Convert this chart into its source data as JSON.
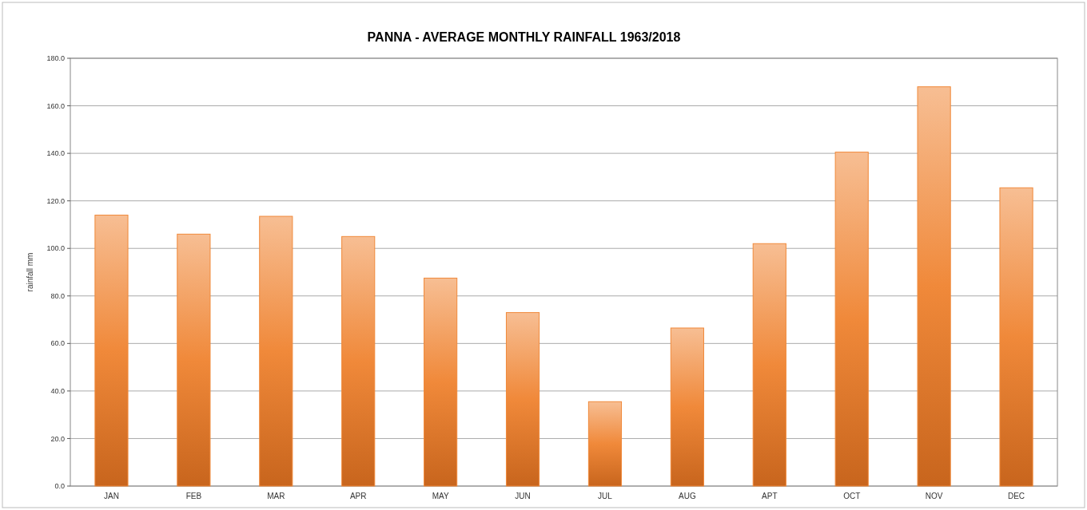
{
  "chart_data": {
    "type": "bar",
    "title": "PANNA - AVERAGE MONTHLY RAINFALL 1963/2018",
    "ylabel": "rainfall mm",
    "categories": [
      "JAN",
      "FEB",
      "MAR",
      "APR",
      "MAY",
      "JUN",
      "JUL",
      "AUG",
      "APT",
      "OCT",
      "NOV",
      "DEC"
    ],
    "values": [
      114,
      106,
      113.5,
      105,
      87.5,
      73,
      35.5,
      66.5,
      102,
      140.5,
      168,
      125.5
    ],
    "color": "#f0893a",
    "ylim": [
      0,
      180
    ],
    "yticks": [
      {
        "value": 0,
        "label": "0.0"
      },
      {
        "value": 20,
        "label": "20.0"
      },
      {
        "value": 40,
        "label": "40.0"
      },
      {
        "value": 60,
        "label": "60.0"
      },
      {
        "value": 80,
        "label": "80.0"
      },
      {
        "value": 100,
        "label": "100.0"
      },
      {
        "value": 120,
        "label": "120.0"
      },
      {
        "value": 140,
        "label": "140.0"
      },
      {
        "value": 160,
        "label": "160.0"
      },
      {
        "value": 180,
        "label": "180.0"
      }
    ],
    "grid": "y"
  }
}
